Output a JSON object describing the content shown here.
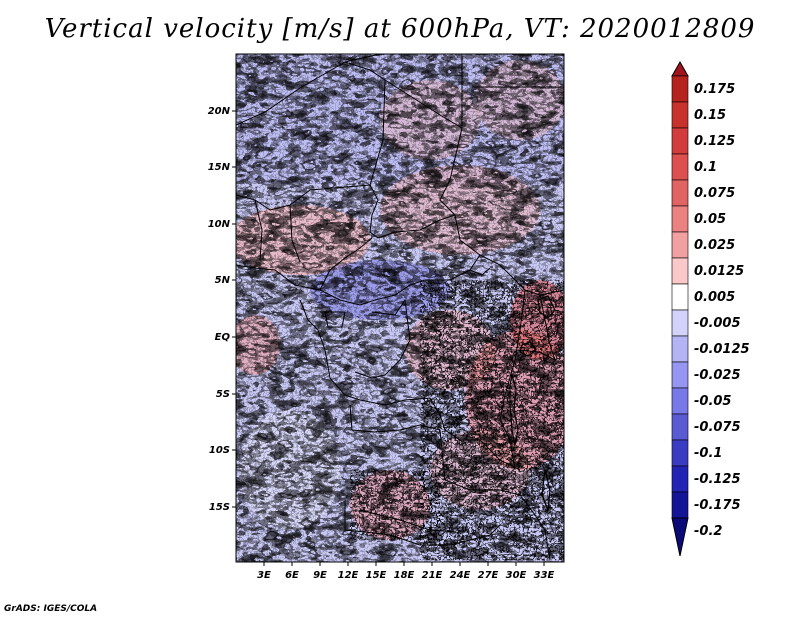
{
  "title": "Vertical velocity [m/s] at 600hPa, VT: 2020012809",
  "credit": "GrADS: IGES/COLA",
  "map": {
    "lon_range": [
      0,
      35
    ],
    "lat_range": [
      -20,
      24
    ],
    "lon_ticks": [
      "3E",
      "6E",
      "9E",
      "12E",
      "15E",
      "18E",
      "21E",
      "24E",
      "27E",
      "30E",
      "33E"
    ],
    "lat_ticks": [
      "20N",
      "15N",
      "10N",
      "5N",
      "EQ",
      "5S",
      "10S",
      "15S"
    ]
  },
  "colorbar": {
    "labels": [
      "0.175",
      "0.15",
      "0.125",
      "0.1",
      "0.075",
      "0.05",
      "0.025",
      "0.0125",
      "0.005",
      "-0.005",
      "-0.0125",
      "-0.025",
      "-0.05",
      "-0.075",
      "-0.1",
      "-0.125",
      "-0.175",
      "-0.2"
    ],
    "colors": [
      "#a0141e",
      "#b4231e",
      "#c8322d",
      "#d23c3c",
      "#dc5050",
      "#e16464",
      "#eb8282",
      "#f0a0a0",
      "#fac8c8",
      "#ffffff",
      "#d2d2fa",
      "#b4b4f5",
      "#9696f0",
      "#7878e6",
      "#5a5ad2",
      "#3c3cc3",
      "#2323b4",
      "#141496",
      "#0a0a78"
    ]
  }
}
